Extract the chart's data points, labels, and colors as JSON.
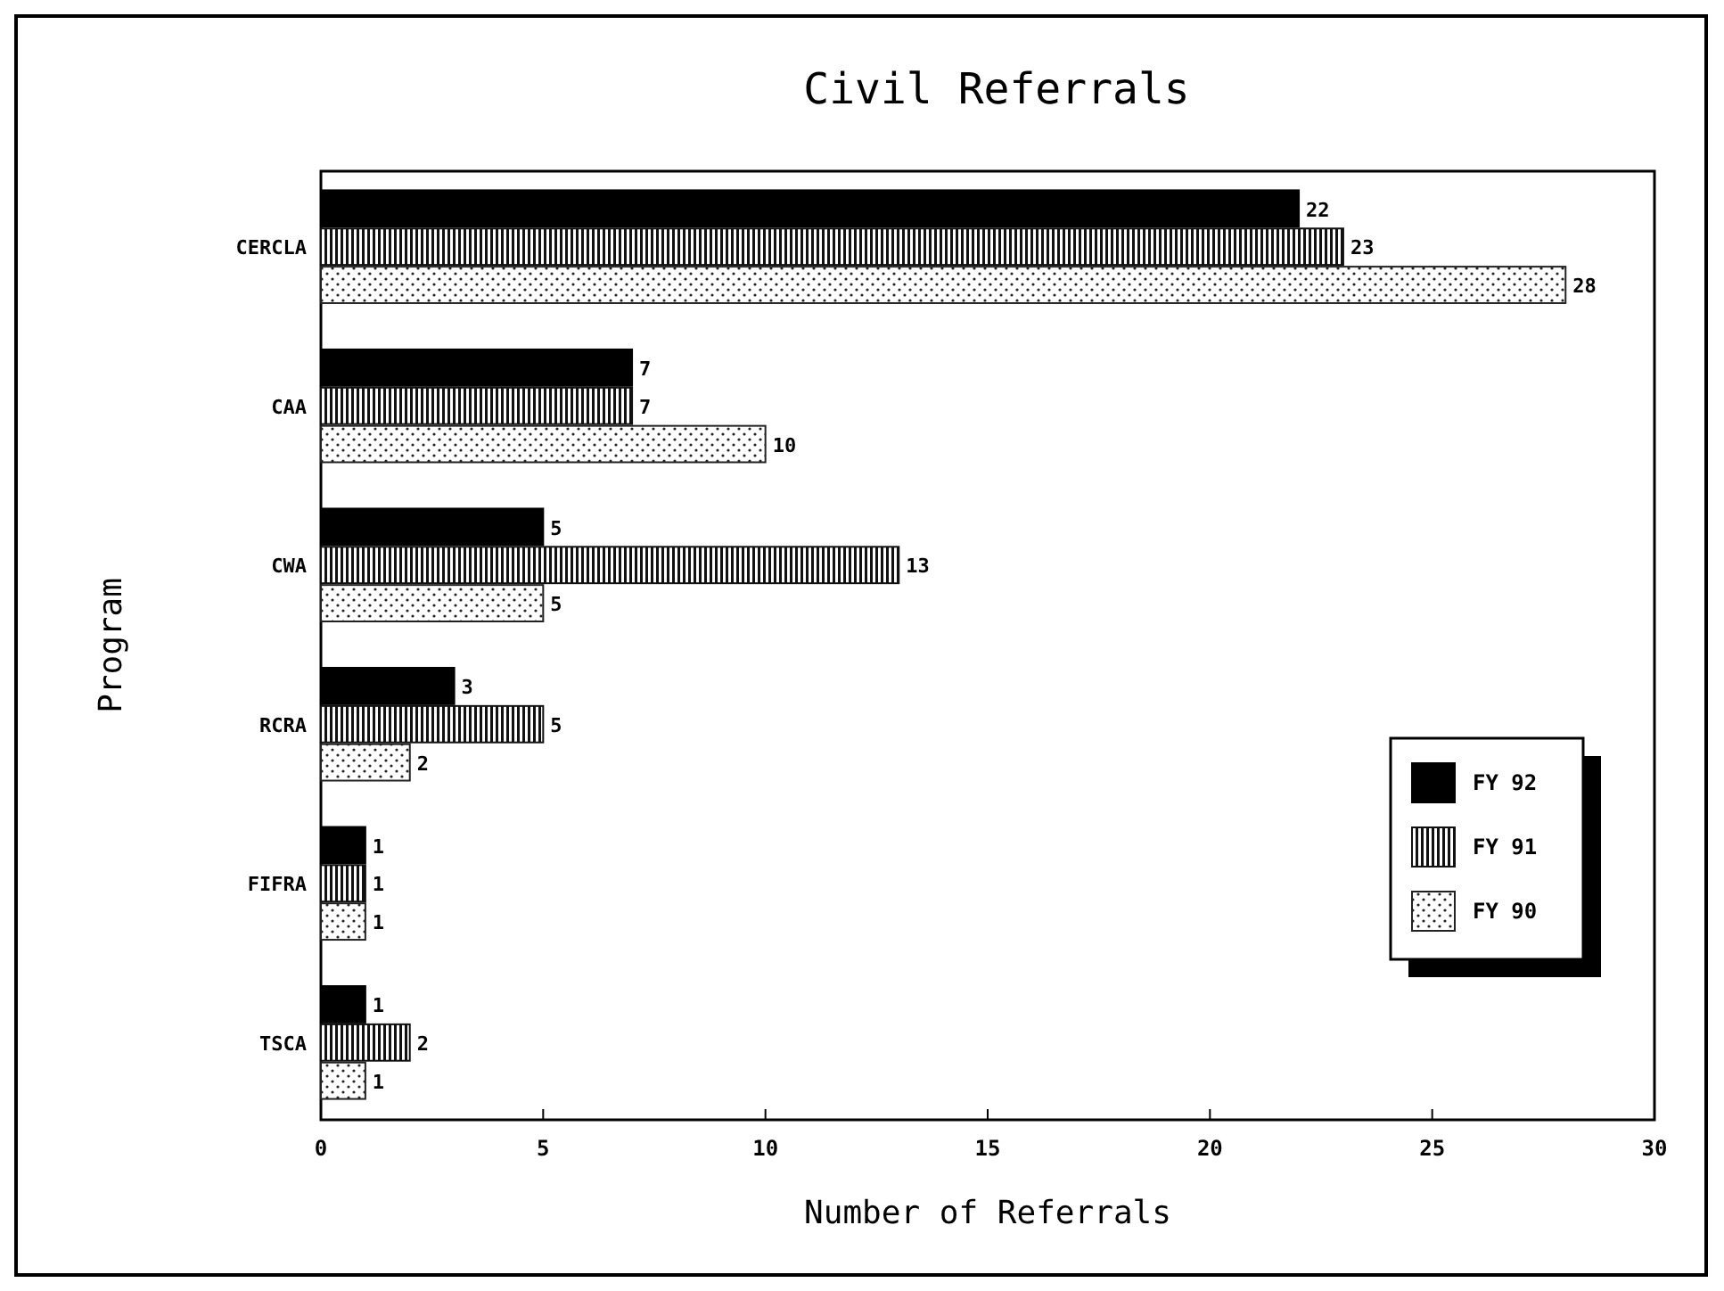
{
  "chart_data": {
    "type": "bar",
    "orientation": "horizontal",
    "title": "Civil Referrals",
    "xlabel": "Number of Referrals",
    "ylabel": "Program",
    "categories": [
      "CERCLA",
      "CAA",
      "CWA",
      "RCRA",
      "FIFRA",
      "TSCA"
    ],
    "series": [
      {
        "name": "FY 92",
        "color": "#000000",
        "values": [
          22,
          7,
          5,
          3,
          1,
          1
        ]
      },
      {
        "name": "FY 91",
        "color": "#111111",
        "values": [
          23,
          7,
          13,
          5,
          1,
          2
        ]
      },
      {
        "name": "FY 90",
        "color": "#222222",
        "values": [
          28,
          10,
          5,
          2,
          1,
          1
        ]
      }
    ],
    "xlim": [
      0,
      30
    ],
    "xticks": [
      0,
      5,
      10,
      15,
      20,
      25,
      30
    ],
    "data_labels": true,
    "legend": "bottom right",
    "grid": false
  }
}
